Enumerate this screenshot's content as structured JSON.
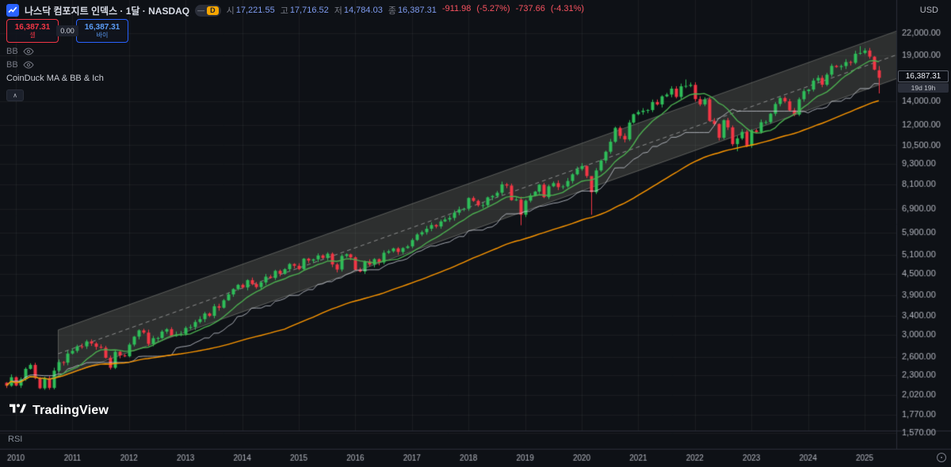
{
  "header": {
    "title": "나스닥 컴포지트 인덱스 · 1달 · NASDAQ",
    "interval_badge": "D",
    "ohlc": {
      "open_label": "시",
      "open": "17,221.55",
      "high_label": "고",
      "high": "17,716.52",
      "low_label": "저",
      "low": "14,784.03",
      "close_label": "종",
      "close": "16,387.31",
      "change_abs": "-911.98",
      "change_pct": "(-5.27%)",
      "change2_abs": "-737.66",
      "change2_pct": "(-4.31%)"
    },
    "currency": "USD"
  },
  "trade_panel": {
    "sell_price": "16,387.31",
    "sell_label": "셀",
    "spread": "0.00",
    "buy_price": "16,387.31",
    "buy_label": "바이"
  },
  "indicators": [
    {
      "name": "BB"
    },
    {
      "name": "BB"
    },
    {
      "name": "CoinDuck MA & BB & Ich"
    }
  ],
  "icons": {
    "minus": "—",
    "chevron_up": "∧"
  },
  "watermark": "TradingView",
  "panes": {
    "rsi_label": "RSI"
  },
  "price_axis": {
    "last_price": "16,387.31",
    "countdown": "19d 19h"
  },
  "theme": {
    "bg": "#0e1116",
    "sell_red": "#f23645",
    "buy_blue": "#5b9cf6",
    "accent_orange": "#f7a600",
    "text_primary": "#d8dce6",
    "text_muted": "#787b86",
    "panel_border": "#2a2e39",
    "ohlc_value": "#7e9bef",
    "change_red": "#f7525f"
  },
  "chart_data": {
    "type": "candlestick",
    "symbol": "NASDAQ Composite Index",
    "interval": "1M",
    "scale": "log",
    "start": "2009-11",
    "closes": [
      2145,
      2269,
      2147,
      2238,
      2398,
      2461,
      2257,
      2109,
      2255,
      2114,
      2369,
      2507,
      2498,
      2653,
      2700,
      2782,
      2781,
      2874,
      2835,
      2774,
      2756,
      2579,
      2415,
      2684,
      2620,
      2605,
      2814,
      2967,
      3092,
      3046,
      2827,
      2935,
      2940,
      3067,
      3116,
      2977,
      3010,
      3020,
      3142,
      3160,
      3268,
      3329,
      3456,
      3403,
      3626,
      3590,
      3771,
      3920,
      4060,
      4177,
      4104,
      4308,
      4199,
      4115,
      4243,
      4408,
      4370,
      4580,
      4493,
      4631,
      4792,
      4736,
      4635,
      4964,
      4901,
      4941,
      5070,
      4987,
      5128,
      4777,
      4620,
      5054,
      5109,
      5007,
      4614,
      4558,
      4870,
      4775,
      4948,
      4843,
      5162,
      5213,
      5312,
      5189,
      5324,
      5383,
      5615,
      5825,
      5912,
      6048,
      6199,
      6140,
      6348,
      6429,
      6496,
      6728,
      6874,
      6903,
      7411,
      7273,
      7063,
      7066,
      7442,
      7510,
      7672,
      8110,
      8046,
      7306,
      7331,
      6635,
      7282,
      7533,
      7729,
      8095,
      7453,
      8006,
      8175,
      7963,
      7999,
      8292,
      8665,
      8973,
      9151,
      8567,
      7700,
      8890,
      9490,
      10059,
      10745,
      11775,
      11168,
      10912,
      12199,
      12888,
      13071,
      13192,
      13247,
      13963,
      13749,
      14504,
      14673,
      15259,
      14449,
      15498,
      15538,
      15645,
      14240,
      13751,
      14221,
      12335,
      12081,
      11029,
      12391,
      11816,
      10576,
      10988,
      11468,
      10466,
      11585,
      11456,
      12222,
      12227,
      12935,
      13788,
      14346,
      14035,
      13219,
      12851,
      14226,
      15011,
      15164,
      16092,
      16379,
      15658,
      16735,
      17733,
      17599,
      17713,
      18189,
      18095,
      19218,
      19311,
      19627,
      18847,
      17299,
      16387.31
    ],
    "last_candle": {
      "open": 17221.55,
      "high": 17716.52,
      "low": 14784.03,
      "close": 16387.31
    },
    "overrides": {
      "109": {
        "low": 6190
      },
      "124": {
        "low": 6631,
        "high": 8540
      },
      "144": {
        "high": 16212
      },
      "155": {
        "low": 10089
      },
      "181": {
        "high": 20205
      },
      "185": {
        "open": 17221.55,
        "high": 17716.52,
        "low": 14784.03
      }
    },
    "y_ticks": [
      22000,
      19000,
      14000,
      12000,
      10500,
      9300,
      8100,
      6900,
      5900,
      5100,
      4500,
      3900,
      3400,
      3000,
      2600,
      2300,
      2020,
      1770,
      1570
    ],
    "x_ticks": [
      2010,
      2011,
      2012,
      2013,
      2014,
      2015,
      2016,
      2017,
      2018,
      2019,
      2020,
      2021,
      2022,
      2023,
      2024,
      2025
    ],
    "y_axis_anchors": {
      "price_top_tick": 22000,
      "y_top_tick": 42,
      "price_bottom_tick": 1570,
      "y_bottom_tick": 547
    },
    "x_layout": {
      "x0": 8.1,
      "month_step": 5.95,
      "first_month_index_of_2010": 2
    },
    "channel": {
      "start_month": 11,
      "end_month": 189,
      "center_start": 2650,
      "center_end": 19120,
      "half_width_ratio": 1.17
    },
    "ma": {
      "fast_period": 10,
      "slow_period": 60,
      "baseline_period": 26
    },
    "colors": {
      "bg": "#0e1116",
      "grid": "rgba(255,255,255,0.05)",
      "divider": "#2a2e39",
      "axis_text": "#b2b5be",
      "up": "#2ebd59",
      "down": "#f23645",
      "ma_fast": "#4caf50",
      "ma_slow": "#ff9800",
      "baseline": "#d8dce6",
      "channel_fill": "rgba(170,170,152,0.20)",
      "channel_line": "rgba(205,205,195,0.35)",
      "channel_center": "rgba(255,255,255,0.45)"
    }
  }
}
